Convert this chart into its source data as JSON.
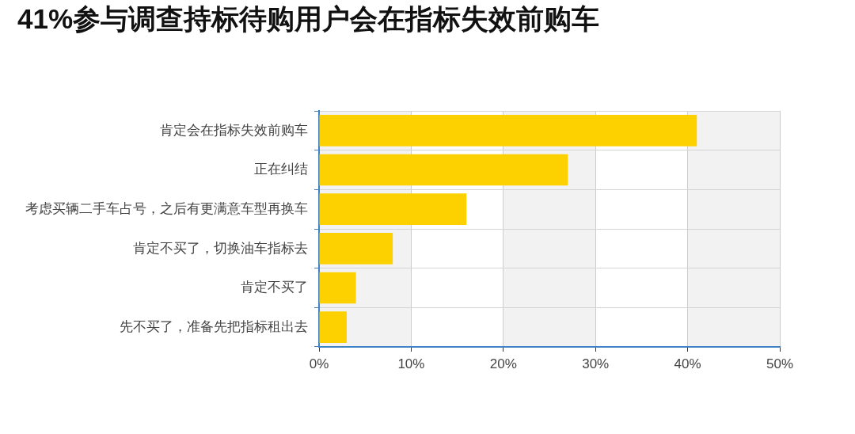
{
  "chart_data": {
    "type": "bar",
    "title": "41%参与调查持标待购用户会在指标失效前购车",
    "orientation": "horizontal",
    "categories": [
      "肯定会在指标失效前购车",
      "正在纠结",
      "考虑买辆二手车占号，之后有更满意车型再换车",
      "肯定不买了，切换油车指标去",
      "肯定不买了",
      "先不买了，准备先把指标租出去"
    ],
    "values": [
      41,
      27,
      16,
      8,
      4,
      3
    ],
    "color": "#fdd000",
    "xlim": [
      0,
      50
    ],
    "xticks": [
      {
        "value": 0,
        "label": "0%"
      },
      {
        "value": 10,
        "label": "10%"
      },
      {
        "value": 20,
        "label": "20%"
      },
      {
        "value": 30,
        "label": "30%"
      },
      {
        "value": 40,
        "label": "40%"
      },
      {
        "value": 50,
        "label": "50%"
      }
    ],
    "grid": true,
    "bands": [
      {
        "axis": "x",
        "from": 0,
        "to": 10,
        "color": "#f2f2f2"
      },
      {
        "axis": "x",
        "from": 20,
        "to": 30,
        "color": "#f2f2f2"
      },
      {
        "axis": "x",
        "from": 40,
        "to": 50,
        "color": "#f2f2f2"
      }
    ]
  }
}
